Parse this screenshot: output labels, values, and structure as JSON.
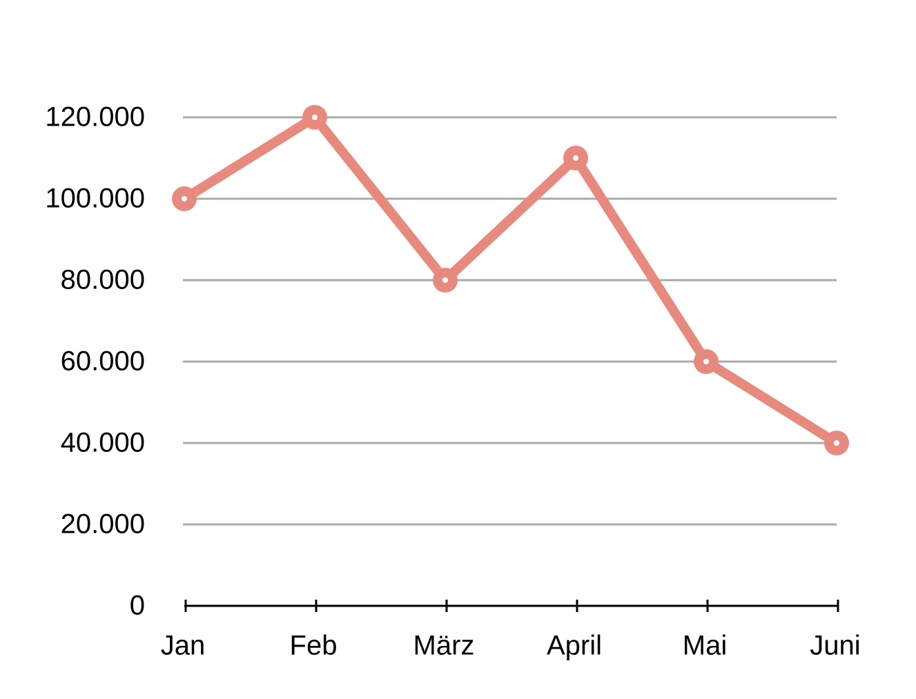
{
  "chart_data": {
    "type": "line",
    "categories": [
      "Jan",
      "Feb",
      "März",
      "April",
      "Mai",
      "Juni"
    ],
    "series": [
      {
        "color": "#e8897e",
        "values": [
          100000,
          120000,
          80000,
          110000,
          60000,
          40000
        ]
      }
    ],
    "ylim": [
      0,
      120000
    ],
    "yticks": [
      0,
      {
        "value": 20000,
        "label": "20.000"
      },
      {
        "value": 40000,
        "label": "40.000"
      },
      {
        "value": 60000,
        "label": "60.000"
      },
      {
        "value": 80000,
        "label": "80.000"
      },
      {
        "value": 100000,
        "label": "100.000"
      },
      {
        "value": 120000,
        "label": "120.000"
      }
    ],
    "grid": true
  }
}
